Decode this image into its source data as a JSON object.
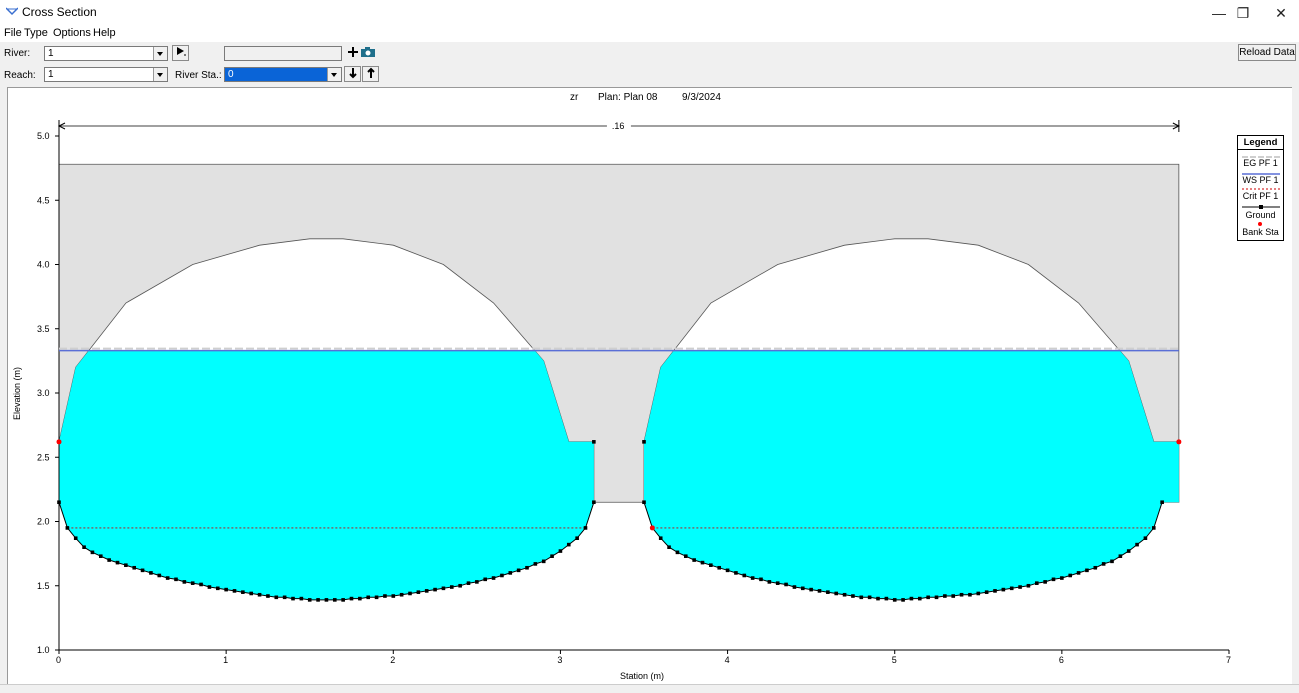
{
  "window": {
    "title": "Cross Section",
    "minimize": "—",
    "restore": "❐",
    "close": "✕",
    "icon": "cross-section-app-icon"
  },
  "menu": [
    "File",
    "Type",
    "Options",
    "Help"
  ],
  "toolbar": {
    "river_label": "River:",
    "river_value": "1",
    "reach_label": "Reach:",
    "reach_value": "1",
    "river_sta_label": "River Sta.:",
    "river_sta_value": "0",
    "play_icon": "play-icon",
    "add_icon": "plus-icon",
    "camera_icon": "camera-icon",
    "down_icon": "arrow-down-icon",
    "up_icon": "arrow-up-icon",
    "reload_label": "Reload Data"
  },
  "colors": {
    "water": "#00ffff",
    "structure": "#e1e1e1",
    "ws_line": "#5a6fd6",
    "eg_line": "#cfcfcf",
    "bank_sta": "#ff0000",
    "crit": "#cc0000"
  },
  "chart_data": {
    "type": "area",
    "title_left": "zr",
    "title_plan": "Plan: Plan 08",
    "title_date": "9/3/2024",
    "xlabel": "Station (m)",
    "ylabel": "Elevation (m)",
    "xlim": [
      0,
      7
    ],
    "ylim": [
      1.0,
      5.0
    ],
    "xticks": [
      "0",
      "1",
      "2",
      "3",
      "4",
      "5",
      "6",
      "7"
    ],
    "yticks": [
      "1.0",
      "1.5",
      "2.0",
      "2.5",
      "3.0",
      "3.5",
      "4.0",
      "4.5",
      "5.0"
    ],
    "manning_label": ".16",
    "water_surface_elev": 3.33,
    "energy_grade_elev": 3.345,
    "critical_elev": 1.95,
    "bridge_deck_top": 4.78,
    "bridge_low_chord_between": 2.62,
    "bank_stations": [
      [
        0.0,
        2.62
      ],
      [
        6.7,
        2.62
      ],
      [
        3.55,
        1.95
      ]
    ],
    "ground_left": [
      [
        0.0,
        2.15
      ],
      [
        0.05,
        1.95
      ],
      [
        0.1,
        1.87
      ],
      [
        0.15,
        1.8
      ],
      [
        0.2,
        1.76
      ],
      [
        0.25,
        1.73
      ],
      [
        0.3,
        1.7
      ],
      [
        0.35,
        1.68
      ],
      [
        0.4,
        1.66
      ],
      [
        0.45,
        1.64
      ],
      [
        0.5,
        1.62
      ],
      [
        0.55,
        1.6
      ],
      [
        0.6,
        1.58
      ],
      [
        0.65,
        1.56
      ],
      [
        0.7,
        1.55
      ],
      [
        0.75,
        1.53
      ],
      [
        0.8,
        1.52
      ],
      [
        0.85,
        1.51
      ],
      [
        0.9,
        1.49
      ],
      [
        0.95,
        1.48
      ],
      [
        1.0,
        1.47
      ],
      [
        1.05,
        1.46
      ],
      [
        1.1,
        1.45
      ],
      [
        1.15,
        1.44
      ],
      [
        1.2,
        1.43
      ],
      [
        1.25,
        1.42
      ],
      [
        1.3,
        1.41
      ],
      [
        1.35,
        1.41
      ],
      [
        1.4,
        1.4
      ],
      [
        1.45,
        1.4
      ],
      [
        1.5,
        1.39
      ],
      [
        1.55,
        1.39
      ],
      [
        1.6,
        1.39
      ],
      [
        1.65,
        1.39
      ],
      [
        1.7,
        1.39
      ],
      [
        1.75,
        1.4
      ],
      [
        1.8,
        1.4
      ],
      [
        1.85,
        1.41
      ],
      [
        1.9,
        1.41
      ],
      [
        1.95,
        1.42
      ],
      [
        2.0,
        1.42
      ],
      [
        2.05,
        1.43
      ],
      [
        2.1,
        1.44
      ],
      [
        2.15,
        1.45
      ],
      [
        2.2,
        1.46
      ],
      [
        2.25,
        1.47
      ],
      [
        2.3,
        1.48
      ],
      [
        2.35,
        1.49
      ],
      [
        2.4,
        1.5
      ],
      [
        2.45,
        1.52
      ],
      [
        2.5,
        1.53
      ],
      [
        2.55,
        1.55
      ],
      [
        2.6,
        1.56
      ],
      [
        2.65,
        1.58
      ],
      [
        2.7,
        1.6
      ],
      [
        2.75,
        1.62
      ],
      [
        2.8,
        1.64
      ],
      [
        2.85,
        1.67
      ],
      [
        2.9,
        1.69
      ],
      [
        2.95,
        1.73
      ],
      [
        3.0,
        1.77
      ],
      [
        3.05,
        1.82
      ],
      [
        3.1,
        1.87
      ],
      [
        3.15,
        1.95
      ],
      [
        3.2,
        2.15
      ]
    ],
    "ground_right": [
      [
        3.5,
        2.15
      ],
      [
        3.55,
        1.95
      ],
      [
        3.6,
        1.87
      ],
      [
        3.65,
        1.8
      ],
      [
        3.7,
        1.76
      ],
      [
        3.75,
        1.73
      ],
      [
        3.8,
        1.7
      ],
      [
        3.85,
        1.68
      ],
      [
        3.9,
        1.66
      ],
      [
        3.95,
        1.64
      ],
      [
        4.0,
        1.62
      ],
      [
        4.05,
        1.6
      ],
      [
        4.1,
        1.58
      ],
      [
        4.15,
        1.56
      ],
      [
        4.2,
        1.55
      ],
      [
        4.25,
        1.53
      ],
      [
        4.3,
        1.52
      ],
      [
        4.35,
        1.51
      ],
      [
        4.4,
        1.49
      ],
      [
        4.45,
        1.48
      ],
      [
        4.5,
        1.47
      ],
      [
        4.55,
        1.46
      ],
      [
        4.6,
        1.45
      ],
      [
        4.65,
        1.44
      ],
      [
        4.7,
        1.43
      ],
      [
        4.75,
        1.42
      ],
      [
        4.8,
        1.41
      ],
      [
        4.85,
        1.41
      ],
      [
        4.9,
        1.4
      ],
      [
        4.95,
        1.4
      ],
      [
        5.0,
        1.39
      ],
      [
        5.05,
        1.39
      ],
      [
        5.1,
        1.4
      ],
      [
        5.15,
        1.4
      ],
      [
        5.2,
        1.41
      ],
      [
        5.25,
        1.41
      ],
      [
        5.3,
        1.42
      ],
      [
        5.35,
        1.42
      ],
      [
        5.4,
        1.43
      ],
      [
        5.45,
        1.43
      ],
      [
        5.5,
        1.44
      ],
      [
        5.55,
        1.45
      ],
      [
        5.6,
        1.46
      ],
      [
        5.65,
        1.47
      ],
      [
        5.7,
        1.48
      ],
      [
        5.75,
        1.49
      ],
      [
        5.8,
        1.5
      ],
      [
        5.85,
        1.52
      ],
      [
        5.9,
        1.53
      ],
      [
        5.95,
        1.55
      ],
      [
        6.0,
        1.56
      ],
      [
        6.05,
        1.58
      ],
      [
        6.1,
        1.6
      ],
      [
        6.15,
        1.62
      ],
      [
        6.2,
        1.64
      ],
      [
        6.25,
        1.67
      ],
      [
        6.3,
        1.69
      ],
      [
        6.35,
        1.73
      ],
      [
        6.4,
        1.77
      ],
      [
        6.45,
        1.82
      ],
      [
        6.5,
        1.87
      ],
      [
        6.55,
        1.95
      ],
      [
        6.6,
        2.15
      ]
    ],
    "arch_left": [
      [
        0.0,
        2.15
      ],
      [
        0.0,
        2.62
      ],
      [
        0.1,
        3.2
      ],
      [
        0.4,
        3.7
      ],
      [
        0.8,
        4.0
      ],
      [
        1.2,
        4.15
      ],
      [
        1.5,
        4.2
      ],
      [
        1.7,
        4.2
      ],
      [
        2.0,
        4.15
      ],
      [
        2.3,
        4.0
      ],
      [
        2.6,
        3.7
      ],
      [
        2.9,
        3.25
      ],
      [
        3.05,
        2.62
      ],
      [
        3.2,
        2.62
      ],
      [
        3.2,
        2.15
      ]
    ],
    "arch_right": [
      [
        3.5,
        2.15
      ],
      [
        3.5,
        2.62
      ],
      [
        3.6,
        3.2
      ],
      [
        3.9,
        3.7
      ],
      [
        4.3,
        4.0
      ],
      [
        4.7,
        4.15
      ],
      [
        5.0,
        4.2
      ],
      [
        5.2,
        4.2
      ],
      [
        5.5,
        4.15
      ],
      [
        5.8,
        4.0
      ],
      [
        6.1,
        3.7
      ],
      [
        6.4,
        3.25
      ],
      [
        6.55,
        2.62
      ],
      [
        6.7,
        2.62
      ],
      [
        6.7,
        2.15
      ]
    ],
    "legend": [
      "Legend",
      "EG PF 1",
      "WS PF 1",
      "Crit PF 1",
      "Ground",
      "Bank Sta"
    ]
  }
}
